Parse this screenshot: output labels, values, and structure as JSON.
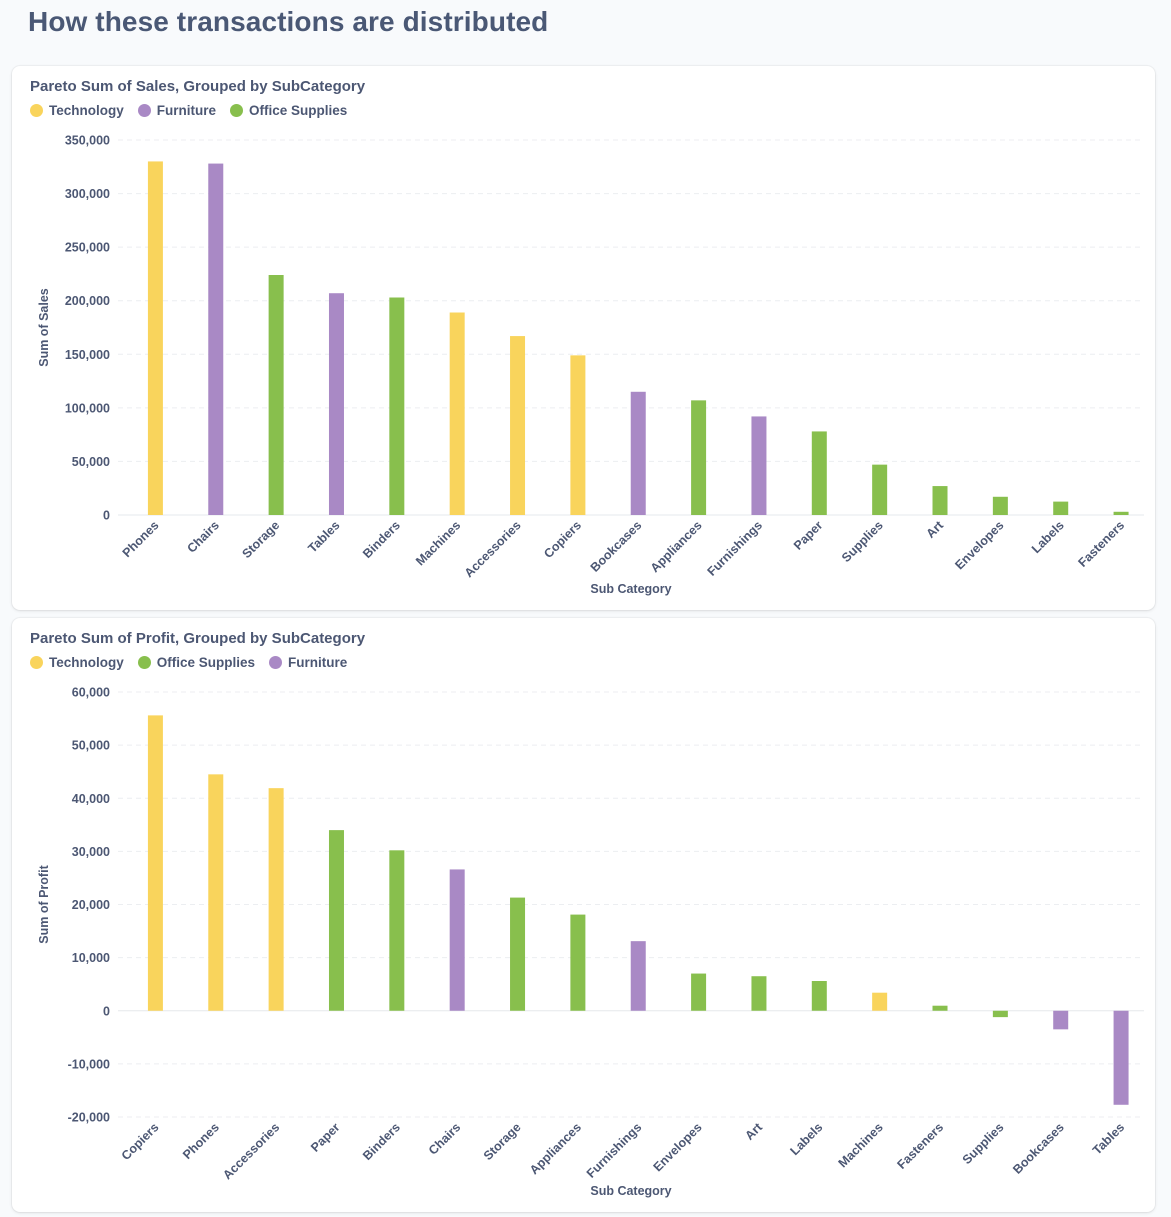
{
  "page": {
    "title": "How these transactions are distributed"
  },
  "colors": {
    "Technology": "#f9d45c",
    "Furniture": "#a989c5",
    "Office Supplies": "#88bf4d"
  },
  "chart_data": [
    {
      "type": "bar",
      "title": "Pareto Sum of Sales, Grouped by SubCategory",
      "xlabel": "Sub Category",
      "ylabel": "Sum of Sales",
      "ylim": [
        0,
        350000
      ],
      "yticks": [
        0,
        50000,
        100000,
        150000,
        200000,
        250000,
        300000,
        350000
      ],
      "ytick_labels": [
        "0",
        "50,000",
        "100,000",
        "150,000",
        "200,000",
        "250,000",
        "300,000",
        "350,000"
      ],
      "legend": [
        "Technology",
        "Furniture",
        "Office Supplies"
      ],
      "legend_position": "top-left",
      "grid": true,
      "categories": [
        "Phones",
        "Chairs",
        "Storage",
        "Tables",
        "Binders",
        "Machines",
        "Accessories",
        "Copiers",
        "Bookcases",
        "Appliances",
        "Furnishings",
        "Paper",
        "Supplies",
        "Art",
        "Envelopes",
        "Labels",
        "Fasteners"
      ],
      "series": [
        {
          "name": "Technology",
          "values": [
            330000,
            null,
            null,
            null,
            null,
            189000,
            167000,
            149000,
            null,
            null,
            null,
            null,
            null,
            null,
            null,
            null,
            null
          ]
        },
        {
          "name": "Furniture",
          "values": [
            null,
            328000,
            null,
            207000,
            null,
            null,
            null,
            null,
            115000,
            null,
            92000,
            null,
            null,
            null,
            null,
            null,
            null
          ]
        },
        {
          "name": "Office Supplies",
          "values": [
            null,
            null,
            224000,
            null,
            203000,
            null,
            null,
            null,
            null,
            107000,
            null,
            78000,
            47000,
            27000,
            17000,
            12500,
            3000
          ]
        }
      ]
    },
    {
      "type": "bar",
      "title": "Pareto Sum of Profit, Grouped by SubCategory",
      "xlabel": "Sub Category",
      "ylabel": "Sum of Profit",
      "ylim": [
        -20000,
        60000
      ],
      "yticks": [
        -20000,
        -10000,
        0,
        10000,
        20000,
        30000,
        40000,
        50000,
        60000
      ],
      "ytick_labels": [
        "-20,000",
        "-10,000",
        "0",
        "10,000",
        "20,000",
        "30,000",
        "40,000",
        "50,000",
        "60,000"
      ],
      "legend": [
        "Technology",
        "Office Supplies",
        "Furniture"
      ],
      "legend_position": "top-left",
      "grid": true,
      "categories": [
        "Copiers",
        "Phones",
        "Accessories",
        "Paper",
        "Binders",
        "Chairs",
        "Storage",
        "Appliances",
        "Furnishings",
        "Envelopes",
        "Art",
        "Labels",
        "Machines",
        "Fasteners",
        "Supplies",
        "Bookcases",
        "Tables"
      ],
      "series": [
        {
          "name": "Technology",
          "values": [
            55600,
            44500,
            41900,
            null,
            null,
            null,
            null,
            null,
            null,
            null,
            null,
            null,
            3400,
            null,
            null,
            null,
            null
          ]
        },
        {
          "name": "Office Supplies",
          "values": [
            null,
            null,
            null,
            34000,
            30200,
            null,
            21300,
            18100,
            null,
            7000,
            6500,
            5600,
            null,
            950,
            -1200,
            null,
            null
          ]
        },
        {
          "name": "Furniture",
          "values": [
            null,
            null,
            null,
            null,
            null,
            26600,
            null,
            null,
            13100,
            null,
            null,
            null,
            null,
            null,
            null,
            -3500,
            -17700
          ]
        }
      ]
    }
  ]
}
